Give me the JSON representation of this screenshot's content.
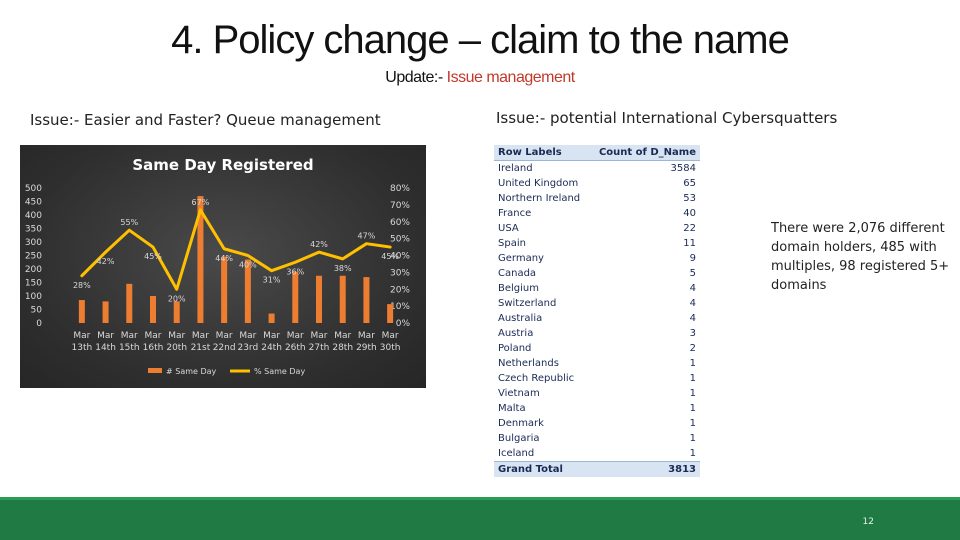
{
  "slide": {
    "title": "4. Policy change – claim to the name",
    "subtitle_prefix": "Update:-",
    "subtitle_highlight": "Issue management",
    "issue_left": "Issue:- Easier and Faster? Queue management",
    "issue_right": "Issue:- potential International Cybersquatters",
    "note": "There were 2,076 different domain holders, 485 with multiples, 98 registered 5+ domains",
    "page_number": "12"
  },
  "colors": {
    "bar": "#ed7d31",
    "line": "#ffc000",
    "accent_green": "#1f7a44"
  },
  "pivot_table": {
    "headers": [
      "Row Labels",
      "Count of D_Name"
    ],
    "rows": [
      [
        "Ireland",
        "3584"
      ],
      [
        "United Kingdom",
        "65"
      ],
      [
        "Northern Ireland",
        "53"
      ],
      [
        "France",
        "40"
      ],
      [
        "USA",
        "22"
      ],
      [
        "Spain",
        "11"
      ],
      [
        "Germany",
        "9"
      ],
      [
        "Canada",
        "5"
      ],
      [
        "Belgium",
        "4"
      ],
      [
        "Switzerland",
        "4"
      ],
      [
        "Australia",
        "4"
      ],
      [
        "Austria",
        "3"
      ],
      [
        "Poland",
        "2"
      ],
      [
        "Netherlands",
        "1"
      ],
      [
        "Czech Republic",
        "1"
      ],
      [
        "Vietnam",
        "1"
      ],
      [
        "Malta",
        "1"
      ],
      [
        "Denmark",
        "1"
      ],
      [
        "Bulgaria",
        "1"
      ],
      [
        "Iceland",
        "1"
      ]
    ],
    "total": [
      "Grand Total",
      "3813"
    ]
  },
  "chart_data": {
    "type": "bar",
    "title": "Same Day Registered",
    "categories": [
      [
        "Mar",
        "13th"
      ],
      [
        "Mar",
        "14th"
      ],
      [
        "Mar",
        "15th"
      ],
      [
        "Mar",
        "16th"
      ],
      [
        "Mar",
        "20th"
      ],
      [
        "Mar",
        "21st"
      ],
      [
        "Mar",
        "22nd"
      ],
      [
        "Mar",
        "23rd"
      ],
      [
        "Mar",
        "24th"
      ],
      [
        "Mar",
        "26th"
      ],
      [
        "Mar",
        "27th"
      ],
      [
        "Mar",
        "28th"
      ],
      [
        "Mar",
        "29th"
      ],
      [
        "Mar",
        "30th"
      ]
    ],
    "series": [
      {
        "name": "# Same Day",
        "type": "bar",
        "axis": "left",
        "values": [
          85,
          80,
          145,
          100,
          80,
          470,
          245,
          235,
          35,
          190,
          175,
          175,
          170,
          70
        ]
      },
      {
        "name": "% Same Day",
        "type": "line",
        "axis": "right",
        "values": [
          28,
          42,
          55,
          45,
          20,
          67,
          44,
          40,
          31,
          36,
          42,
          38,
          47,
          45
        ],
        "labels": [
          "28%",
          "42%",
          "55%",
          "45%",
          "20%",
          "67%",
          "44%",
          "40%",
          "31%",
          "36%",
          "42%",
          "38%",
          "47%",
          "45%"
        ]
      }
    ],
    "y_left": {
      "min": 0,
      "max": 500,
      "ticks": [
        "0",
        "50",
        "100",
        "150",
        "200",
        "250",
        "300",
        "350",
        "400",
        "450",
        "500"
      ]
    },
    "y_right": {
      "min": 0,
      "max": 80,
      "ticks": [
        "0%",
        "10%",
        "20%",
        "30%",
        "40%",
        "50%",
        "60%",
        "70%",
        "80%"
      ]
    },
    "legend": [
      "# Same Day",
      "% Same Day"
    ],
    "legend_position": "bottom",
    "grid": false
  }
}
